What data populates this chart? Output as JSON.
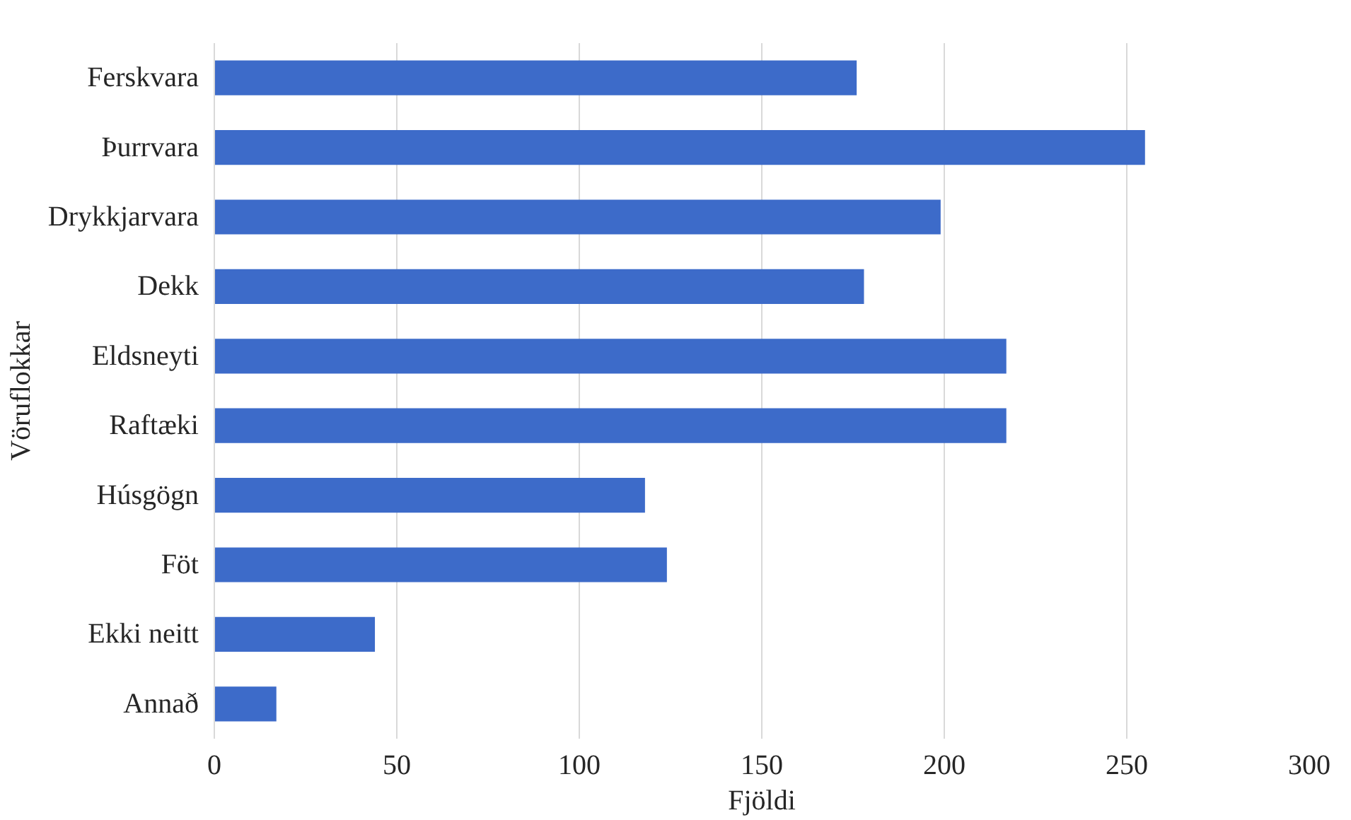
{
  "chart_data": {
    "type": "bar",
    "orientation": "horizontal",
    "xlabel": "Fjöldi",
    "ylabel": "Vöruflokkar",
    "categories": [
      "Ferskvara",
      "Þurrvara",
      "Drykkjarvara",
      "Dekk",
      "Eldsneyti",
      "Raftæki",
      "Húsgögn",
      "Föt",
      "Ekki neitt",
      "Annað"
    ],
    "values": [
      176,
      255,
      199,
      178,
      217,
      217,
      118,
      124,
      44,
      17
    ],
    "color": "#3d6bc9",
    "xlim": [
      0,
      300
    ],
    "xticks": [
      0,
      50,
      100,
      150,
      200,
      250,
      300
    ],
    "grid": "x"
  }
}
